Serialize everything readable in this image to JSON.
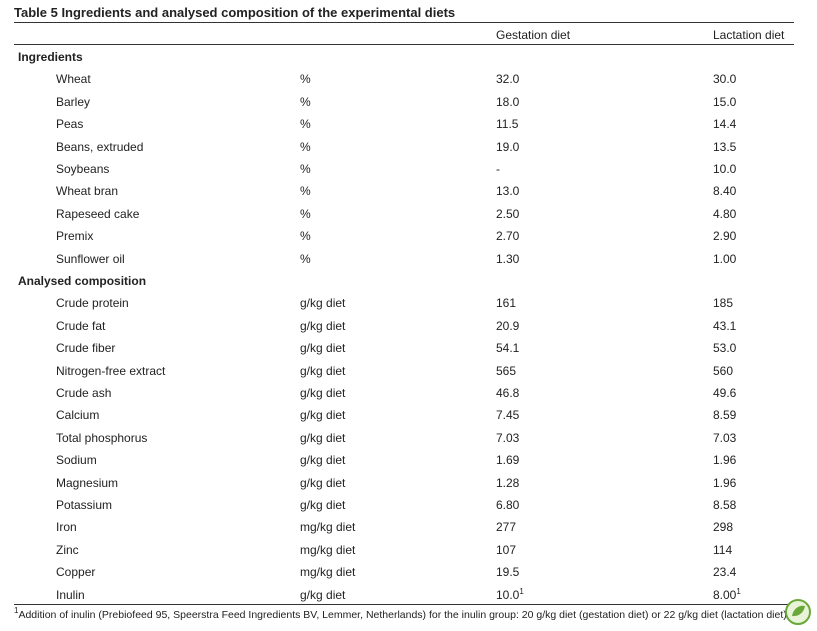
{
  "title": "Table 5 Ingredients and analysed composition of the experimental diets",
  "header": {
    "gestation": "Gestation diet",
    "lactation": "Lactation diet"
  },
  "sections": [
    {
      "title": "Ingredients",
      "rows": [
        {
          "name": "Wheat",
          "unit": "%",
          "gestation": "32.0",
          "lactation": "30.0"
        },
        {
          "name": "Barley",
          "unit": "%",
          "gestation": "18.0",
          "lactation": "15.0"
        },
        {
          "name": "Peas",
          "unit": "%",
          "gestation": "11.5",
          "lactation": "14.4"
        },
        {
          "name": "Beans, extruded",
          "unit": "%",
          "gestation": "19.0",
          "lactation": "13.5"
        },
        {
          "name": "Soybeans",
          "unit": "%",
          "gestation": "-",
          "lactation": "10.0"
        },
        {
          "name": "Wheat bran",
          "unit": "%",
          "gestation": "13.0",
          "lactation": "8.40"
        },
        {
          "name": "Rapeseed cake",
          "unit": "%",
          "gestation": "2.50",
          "lactation": "4.80"
        },
        {
          "name": "Premix",
          "unit": "%",
          "gestation": "2.70",
          "lactation": "2.90"
        },
        {
          "name": "Sunflower oil",
          "unit": "%",
          "gestation": "1.30",
          "lactation": "1.00"
        }
      ]
    },
    {
      "title": "Analysed composition",
      "rows": [
        {
          "name": "Crude protein",
          "unit": "g/kg diet",
          "gestation": "161",
          "lactation": "185"
        },
        {
          "name": "Crude fat",
          "unit": "g/kg diet",
          "gestation": "20.9",
          "lactation": "43.1"
        },
        {
          "name": "Crude fiber",
          "unit": "g/kg diet",
          "gestation": "54.1",
          "lactation": "53.0"
        },
        {
          "name": "Nitrogen-free extract",
          "unit": "g/kg diet",
          "gestation": "565",
          "lactation": "560"
        },
        {
          "name": "Crude ash",
          "unit": "g/kg diet",
          "gestation": "46.8",
          "lactation": "49.6"
        },
        {
          "name": "Calcium",
          "unit": "g/kg diet",
          "gestation": "7.45",
          "lactation": "8.59"
        },
        {
          "name": "Total phosphorus",
          "unit": "g/kg diet",
          "gestation": "7.03",
          "lactation": "7.03"
        },
        {
          "name": "Sodium",
          "unit": "g/kg diet",
          "gestation": "1.69",
          "lactation": "1.96"
        },
        {
          "name": "Magnesium",
          "unit": "g/kg diet",
          "gestation": "1.28",
          "lactation": "1.96"
        },
        {
          "name": "Potassium",
          "unit": "g/kg diet",
          "gestation": "6.80",
          "lactation": "8.58"
        },
        {
          "name": "Iron",
          "unit": "mg/kg diet",
          "gestation": "277",
          "lactation": "298"
        },
        {
          "name": "Zinc",
          "unit": "mg/kg diet",
          "gestation": "107",
          "lactation": "114"
        },
        {
          "name": "Copper",
          "unit": "mg/kg diet",
          "gestation": "19.5",
          "lactation": "23.4"
        },
        {
          "name": "Inulin",
          "unit": "g/kg diet",
          "gestation": "10.0",
          "gestation_note": "1",
          "lactation": "8.00",
          "lactation_note": "1"
        }
      ]
    }
  ],
  "footnote": {
    "marker": "1",
    "text": "Addition of inulin (Prebiofeed 95, Speerstra Feed Ingredients BV, Lemmer, Netherlands) for the inulin group: 20 g/kg diet (gestation diet) or 22 g/kg diet (lactation diet)."
  }
}
